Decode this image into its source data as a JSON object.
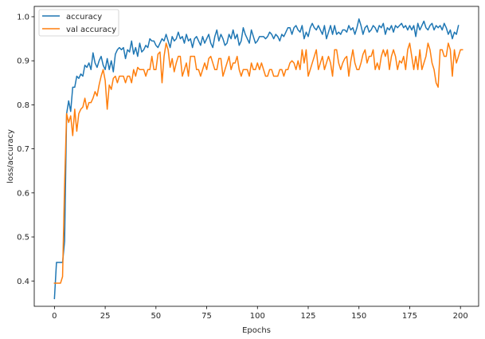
{
  "chart_data": {
    "type": "line",
    "title": "",
    "xlabel": "Epochs",
    "ylabel": "loss/accuracy",
    "xlim": [
      -9.95,
      208.95
    ],
    "ylim": [
      0.3425,
      1.0235
    ],
    "xticks": [
      0,
      25,
      50,
      75,
      100,
      125,
      150,
      175,
      200
    ],
    "yticks": [
      0.4,
      0.5,
      0.6,
      0.7,
      0.8,
      0.9,
      1.0
    ],
    "ytick_labels": [
      "0.4",
      "0.5",
      "0.6",
      "0.7",
      "0.8",
      "0.9",
      "1.0"
    ],
    "grid": false,
    "legend_position": "top-left",
    "series": [
      {
        "name": "accuracy",
        "color": "#1f77b4",
        "values": [
          0.36,
          0.442,
          0.442,
          0.442,
          0.442,
          0.49,
          0.78,
          0.809,
          0.785,
          0.84,
          0.84,
          0.865,
          0.86,
          0.87,
          0.865,
          0.89,
          0.885,
          0.895,
          0.88,
          0.918,
          0.895,
          0.885,
          0.9,
          0.91,
          0.89,
          0.88,
          0.905,
          0.88,
          0.9,
          0.875,
          0.915,
          0.925,
          0.93,
          0.925,
          0.93,
          0.905,
          0.925,
          0.92,
          0.945,
          0.915,
          0.93,
          0.91,
          0.94,
          0.92,
          0.925,
          0.935,
          0.93,
          0.95,
          0.945,
          0.945,
          0.935,
          0.93,
          0.94,
          0.95,
          0.945,
          0.96,
          0.945,
          0.93,
          0.955,
          0.945,
          0.95,
          0.965,
          0.95,
          0.955,
          0.94,
          0.96,
          0.945,
          0.95,
          0.93,
          0.95,
          0.955,
          0.945,
          0.935,
          0.955,
          0.94,
          0.95,
          0.96,
          0.94,
          0.93,
          0.955,
          0.97,
          0.945,
          0.96,
          0.95,
          0.935,
          0.94,
          0.96,
          0.95,
          0.97,
          0.95,
          0.96,
          0.935,
          0.945,
          0.975,
          0.96,
          0.95,
          0.94,
          0.97,
          0.955,
          0.94,
          0.945,
          0.955,
          0.955,
          0.955,
          0.95,
          0.955,
          0.965,
          0.96,
          0.95,
          0.96,
          0.955,
          0.945,
          0.96,
          0.955,
          0.965,
          0.975,
          0.975,
          0.96,
          0.975,
          0.98,
          0.97,
          0.965,
          0.98,
          0.95,
          0.965,
          0.955,
          0.975,
          0.985,
          0.975,
          0.97,
          0.98,
          0.97,
          0.96,
          0.98,
          0.95,
          0.965,
          0.98,
          0.96,
          0.98,
          0.96,
          0.965,
          0.96,
          0.97,
          0.97,
          0.965,
          0.98,
          0.97,
          0.975,
          0.96,
          0.975,
          0.995,
          0.98,
          0.96,
          0.975,
          0.98,
          0.965,
          0.97,
          0.98,
          0.975,
          0.965,
          0.98,
          0.975,
          0.985,
          0.96,
          0.975,
          0.97,
          0.98,
          0.965,
          0.98,
          0.975,
          0.98,
          0.985,
          0.975,
          0.98,
          0.97,
          0.98,
          0.97,
          0.98,
          0.955,
          0.985,
          0.97,
          0.98,
          0.99,
          0.975,
          0.97,
          0.98,
          0.985,
          0.97,
          0.98,
          0.975,
          0.98,
          0.97,
          0.985,
          0.975,
          0.96,
          0.97,
          0.95,
          0.965,
          0.96,
          0.98
        ]
      },
      {
        "name": "val accuracy",
        "color": "#ff7f0e",
        "values": [
          0.395,
          0.395,
          0.395,
          0.395,
          0.41,
          0.62,
          0.78,
          0.76,
          0.775,
          0.73,
          0.79,
          0.74,
          0.78,
          0.79,
          0.795,
          0.815,
          0.79,
          0.805,
          0.805,
          0.815,
          0.83,
          0.82,
          0.845,
          0.865,
          0.88,
          0.855,
          0.79,
          0.845,
          0.835,
          0.86,
          0.865,
          0.85,
          0.865,
          0.865,
          0.865,
          0.85,
          0.865,
          0.865,
          0.85,
          0.88,
          0.865,
          0.885,
          0.88,
          0.88,
          0.88,
          0.865,
          0.88,
          0.88,
          0.91,
          0.88,
          0.88,
          0.915,
          0.92,
          0.85,
          0.91,
          0.94,
          0.925,
          0.885,
          0.905,
          0.875,
          0.895,
          0.91,
          0.91,
          0.865,
          0.88,
          0.895,
          0.865,
          0.91,
          0.91,
          0.91,
          0.88,
          0.88,
          0.865,
          0.88,
          0.895,
          0.88,
          0.905,
          0.91,
          0.895,
          0.88,
          0.88,
          0.905,
          0.905,
          0.865,
          0.88,
          0.895,
          0.91,
          0.88,
          0.895,
          0.895,
          0.91,
          0.88,
          0.865,
          0.88,
          0.88,
          0.88,
          0.865,
          0.895,
          0.88,
          0.88,
          0.895,
          0.88,
          0.895,
          0.88,
          0.865,
          0.865,
          0.88,
          0.88,
          0.865,
          0.865,
          0.865,
          0.88,
          0.88,
          0.865,
          0.88,
          0.88,
          0.895,
          0.9,
          0.895,
          0.88,
          0.9,
          0.88,
          0.925,
          0.895,
          0.925,
          0.865,
          0.88,
          0.895,
          0.91,
          0.925,
          0.88,
          0.895,
          0.91,
          0.88,
          0.895,
          0.91,
          0.895,
          0.865,
          0.925,
          0.925,
          0.895,
          0.88,
          0.895,
          0.905,
          0.91,
          0.865,
          0.9,
          0.925,
          0.895,
          0.88,
          0.88,
          0.895,
          0.915,
          0.925,
          0.895,
          0.91,
          0.91,
          0.925,
          0.88,
          0.895,
          0.88,
          0.91,
          0.925,
          0.91,
          0.925,
          0.88,
          0.91,
          0.925,
          0.91,
          0.88,
          0.9,
          0.895,
          0.91,
          0.88,
          0.925,
          0.94,
          0.91,
          0.88,
          0.91,
          0.88,
          0.925,
          0.88,
          0.895,
          0.91,
          0.94,
          0.925,
          0.895,
          0.88,
          0.85,
          0.84,
          0.925,
          0.925,
          0.91,
          0.91,
          0.94,
          0.925,
          0.865,
          0.925,
          0.895,
          0.91,
          0.925,
          0.925
        ]
      }
    ]
  }
}
